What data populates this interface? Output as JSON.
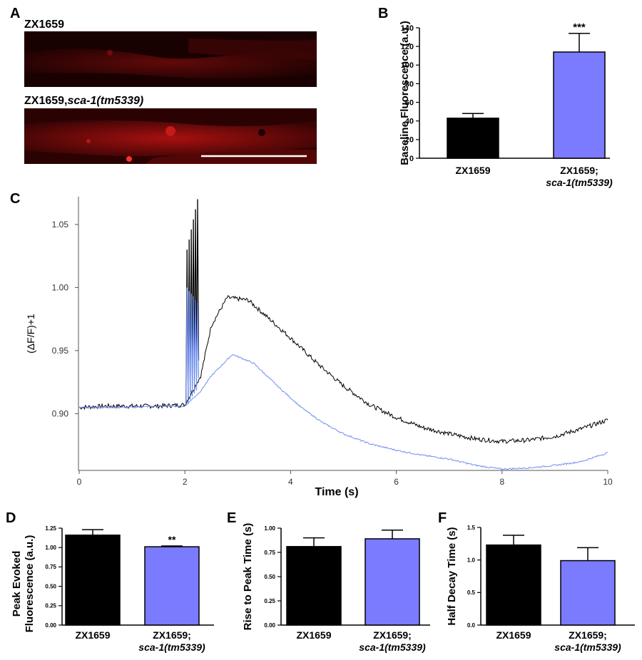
{
  "panels": {
    "A": "A",
    "B": "B",
    "C": "C",
    "D": "D",
    "E": "E",
    "F": "F"
  },
  "panel_a": {
    "label_top": "ZX1659",
    "label_bottom_strain": "ZX1659,",
    "label_bottom_allele": "sca-1(tm5339)"
  },
  "colors": {
    "black_bar": "#000000",
    "blue_bar": "#7b7bff",
    "trace_black": "#000000",
    "trace_blue": "#6f8ff0"
  },
  "chart_data": [
    {
      "id": "B",
      "type": "bar",
      "categories": [
        "ZX1659",
        "ZX1659; sca-1(tm5339)"
      ],
      "cat_line1": [
        "ZX1659",
        "ZX1659;"
      ],
      "cat_line2": [
        "",
        "sca-1(tm5339)"
      ],
      "values": [
        43,
        114
      ],
      "errors": [
        5,
        20
      ],
      "significance": [
        "",
        "***"
      ],
      "ylabel": "Baseline Fluorescence (a.u.)",
      "ylim": [
        0,
        140
      ],
      "yticks": [
        0,
        20,
        40,
        60,
        80,
        100,
        120,
        140
      ],
      "ytick_labels": [
        "0",
        "20",
        "40",
        "60",
        "80",
        "100",
        "120",
        "140"
      ]
    },
    {
      "id": "C",
      "type": "line",
      "xlabel": "Time (s)",
      "ylabel": "(ΔF/F)+1",
      "xlim": [
        0,
        10
      ],
      "ylim": [
        0.855,
        1.072
      ],
      "xticks": [
        0,
        2,
        4,
        6,
        8,
        10
      ],
      "xtick_labels": [
        "0",
        "2",
        "4",
        "6",
        "8",
        "10"
      ],
      "yticks": [
        0.9,
        0.95,
        1.0,
        1.05
      ],
      "ytick_labels": [
        "0.90",
        "0.95",
        "1.00",
        "1.05"
      ],
      "series": [
        {
          "name": "ZX1659",
          "color": "#000000",
          "x": [
            0,
            0.5,
            1.0,
            1.5,
            2.0,
            2.3,
            2.5,
            2.8,
            3.2,
            3.6,
            4.0,
            4.5,
            5.0,
            5.5,
            6.0,
            6.5,
            7.0,
            7.5,
            8.0,
            8.5,
            9.0,
            9.5,
            10.0
          ],
          "y": [
            0.905,
            0.906,
            0.906,
            0.906,
            0.907,
            0.93,
            0.97,
            0.992,
            0.99,
            0.975,
            0.96,
            0.94,
            0.922,
            0.907,
            0.897,
            0.889,
            0.884,
            0.88,
            0.878,
            0.879,
            0.882,
            0.888,
            0.895
          ],
          "stim_peaks": [
            1.03,
            1.038,
            1.046,
            1.054,
            1.062,
            1.07
          ]
        },
        {
          "name": "ZX1659; sca-1(tm5339)",
          "color": "#6f8ff0",
          "x": [
            0,
            0.5,
            1.0,
            1.5,
            2.0,
            2.3,
            2.5,
            2.9,
            3.3,
            3.8,
            4.2,
            4.6,
            5.0,
            5.5,
            6.0,
            6.5,
            7.0,
            7.5,
            8.0,
            8.5,
            9.0,
            9.5,
            10.0
          ],
          "y": [
            0.905,
            0.905,
            0.905,
            0.906,
            0.906,
            0.918,
            0.93,
            0.947,
            0.94,
            0.92,
            0.905,
            0.893,
            0.884,
            0.876,
            0.871,
            0.867,
            0.864,
            0.859,
            0.856,
            0.857,
            0.859,
            0.862,
            0.869
          ],
          "stim_peaks": [
            1.0,
            0.997,
            0.995,
            0.993,
            0.99,
            0.988
          ]
        }
      ],
      "stim_times": [
        2.02,
        2.06,
        2.1,
        2.14,
        2.18,
        2.22
      ]
    },
    {
      "id": "D",
      "type": "bar",
      "categories": [
        "ZX1659",
        "ZX1659; sca-1(tm5339)"
      ],
      "cat_line1": [
        "ZX1659",
        "ZX1659;"
      ],
      "cat_line2": [
        "",
        "sca-1(tm5339)"
      ],
      "values": [
        1.16,
        1.01
      ],
      "errors": [
        0.07,
        0.01
      ],
      "significance": [
        "",
        "**"
      ],
      "ylabel_line1": "Peak Evoked",
      "ylabel_line2": "Fluorescence (a.u.)",
      "ylim": [
        0,
        1.25
      ],
      "yticks": [
        0,
        0.25,
        0.5,
        0.75,
        1.0,
        1.25
      ],
      "ytick_labels": [
        "0.00",
        "0.25",
        "0.50",
        "0.75",
        "1.00",
        "1.25"
      ]
    },
    {
      "id": "E",
      "type": "bar",
      "categories": [
        "ZX1659",
        "ZX1659; sca-1(tm5339)"
      ],
      "cat_line1": [
        "ZX1659",
        "ZX1659;"
      ],
      "cat_line2": [
        "",
        "sca-1(tm5339)"
      ],
      "values": [
        0.81,
        0.89
      ],
      "errors": [
        0.09,
        0.09
      ],
      "significance": [
        "",
        ""
      ],
      "ylabel": "Rise to Peak Time (s)",
      "ylim": [
        0,
        1.0
      ],
      "yticks": [
        0,
        0.25,
        0.5,
        0.75,
        1.0
      ],
      "ytick_labels": [
        "0.00",
        "0.25",
        "0.50",
        "0.75",
        "1.00"
      ]
    },
    {
      "id": "F",
      "type": "bar",
      "categories": [
        "ZX1659",
        "ZX1659; sca-1(tm5339)"
      ],
      "cat_line1": [
        "ZX1659",
        "ZX1659;"
      ],
      "cat_line2": [
        "",
        "sca-1(tm5339)"
      ],
      "values": [
        1.23,
        0.99
      ],
      "errors": [
        0.15,
        0.2
      ],
      "significance": [
        "",
        ""
      ],
      "ylabel": "Half Decay Time (s)",
      "ylim": [
        0,
        1.5
      ],
      "yticks": [
        0,
        0.5,
        1.0,
        1.5
      ],
      "ytick_labels": [
        "0.0",
        "0.5",
        "1.0",
        "1.5"
      ]
    }
  ]
}
